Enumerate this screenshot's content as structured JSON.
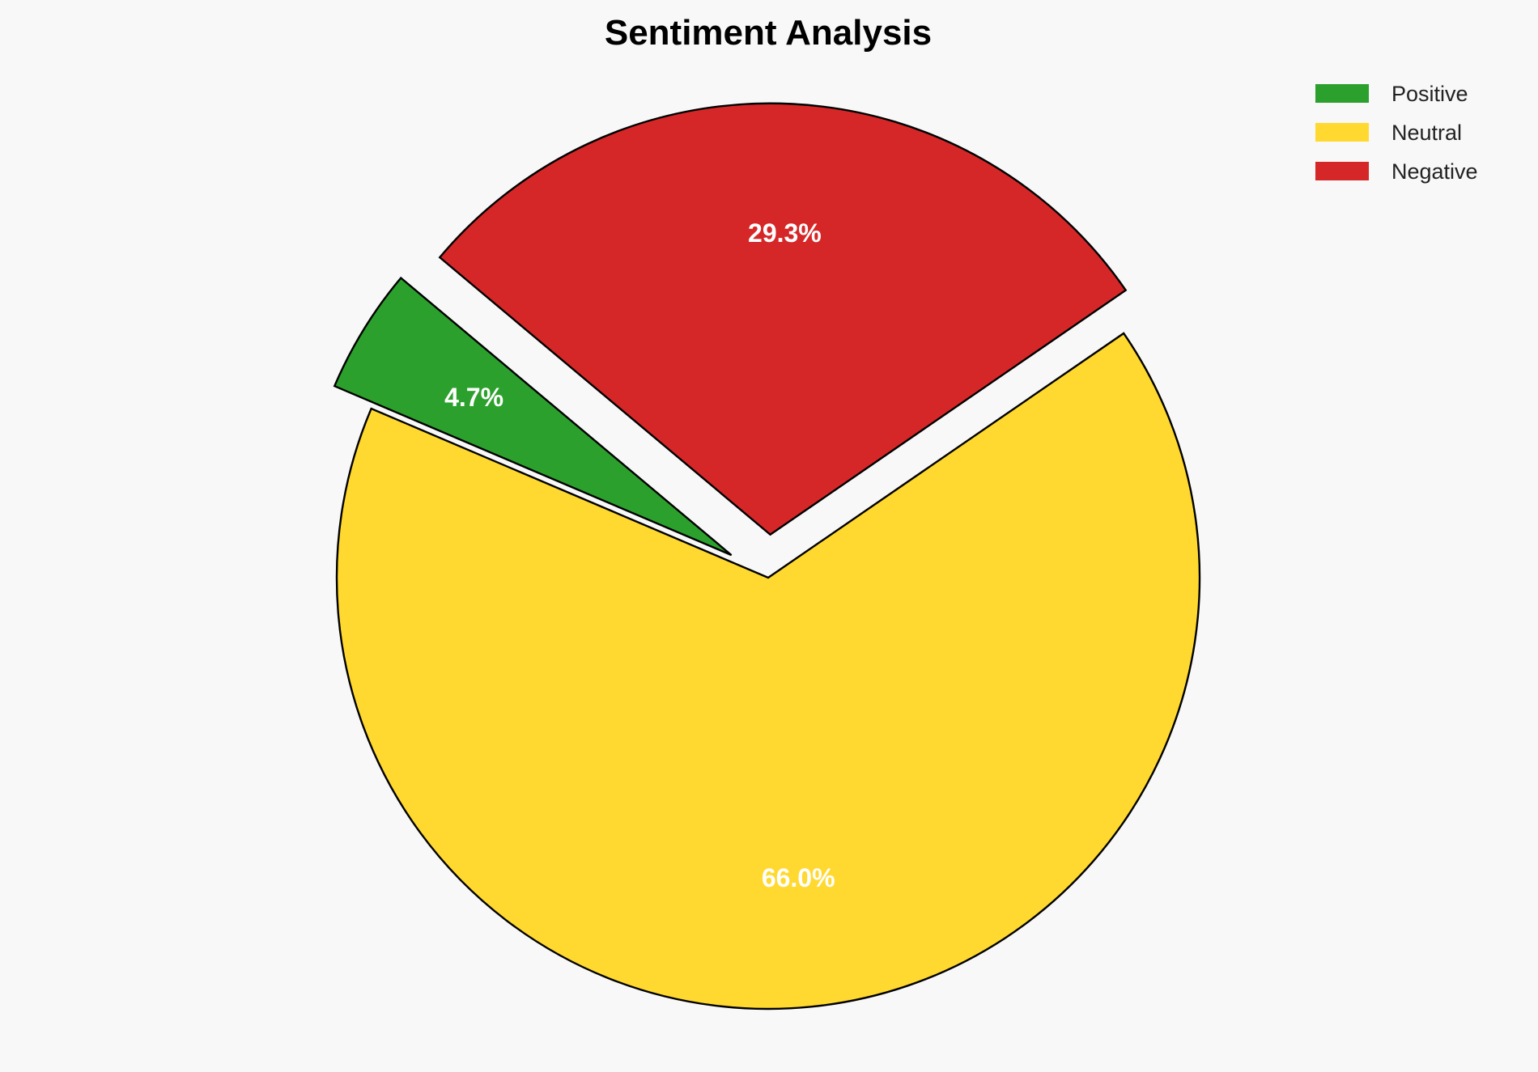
{
  "chart_data": {
    "type": "pie",
    "title": "Sentiment Analysis",
    "categories": [
      "Positive",
      "Neutral",
      "Negative"
    ],
    "values": [
      4.7,
      66.0,
      29.3
    ],
    "labels": [
      "4.7%",
      "66.0%",
      "29.3%"
    ],
    "colors": [
      "#2ca02c",
      "#ffd92f",
      "#d62728"
    ],
    "explode": [
      0.1,
      0,
      0.1
    ],
    "start_angle": 140,
    "direction": "counterclockwise",
    "edge_color": "#000000",
    "legend": {
      "placement": "top-right",
      "entries": [
        "Positive",
        "Neutral",
        "Negative"
      ]
    }
  }
}
